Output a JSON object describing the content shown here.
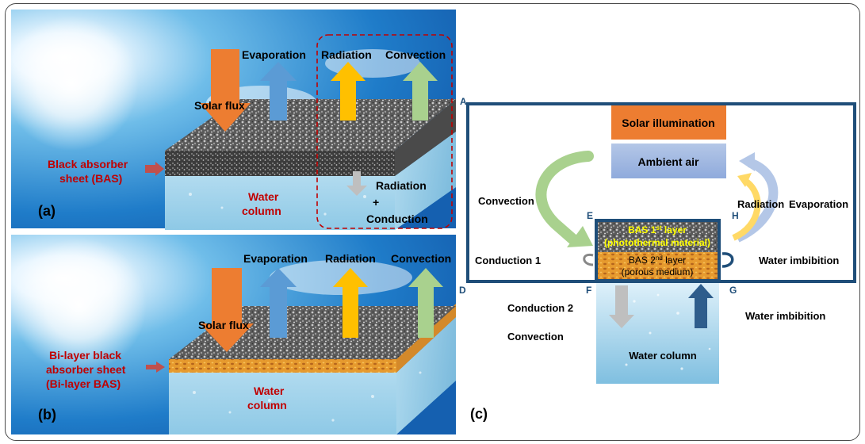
{
  "panel_a": {
    "tag": "(a)",
    "solar_flux": "Solar flux",
    "evaporation": "Evaporation",
    "radiation": "Radiation",
    "convection": "Convection",
    "absorber_line1": "Black absorber",
    "absorber_line2": "sheet (BAS)",
    "water_line1": "Water",
    "water_line2": "column",
    "rad_cond_line1": "Radiation",
    "rad_cond_plus": "+",
    "rad_cond_line2": "Conduction"
  },
  "panel_b": {
    "tag": "(b)",
    "solar_flux": "Solar flux",
    "evaporation": "Evaporation",
    "radiation": "Radiation",
    "convection": "Convection",
    "absorber_line1": "Bi-layer black",
    "absorber_line2": "absorber sheet",
    "absorber_line3": "(Bi-layer BAS)",
    "water_line1": "Water",
    "water_line2": "column"
  },
  "panel_c": {
    "tag": "(c)",
    "corner_A": "A",
    "corner_D": "D",
    "corner_E": "E",
    "corner_F": "F",
    "corner_G": "G",
    "corner_H": "H",
    "solar_illumination": "Solar illumination",
    "ambient_air": "Ambient air",
    "convection": "Convection",
    "radiation": "Radiation",
    "evaporation": "Evaporation",
    "bas1_line1": "BAS 1",
    "bas1_sup": "st",
    "bas1_line1_end": " layer",
    "bas1_line2": "(photothermal material)",
    "bas2_line1": "BAS 2",
    "bas2_sup": "nd",
    "bas2_line1_end": " layer",
    "bas2_line2": "(porous medium)",
    "conduction1": "Conduction 1",
    "water_imbibition_top": "Water imbibition",
    "conduction2": "Conduction 2",
    "convection_lower": "Convection",
    "water_imbibition_bottom": "Water imbibition",
    "water_column": "Water column"
  },
  "colors": {
    "solar_arrow": "#ed7d31",
    "evap_arrow": "#5b9bd5",
    "rad_arrow": "#ffc000",
    "conv_arrow": "#a9d18e",
    "red_label": "#c00000",
    "frame_blue": "#1f4e79",
    "solar_box": "#ed7d31",
    "ambient_box": "#8faadc",
    "bas1_text": "#ffff00"
  }
}
